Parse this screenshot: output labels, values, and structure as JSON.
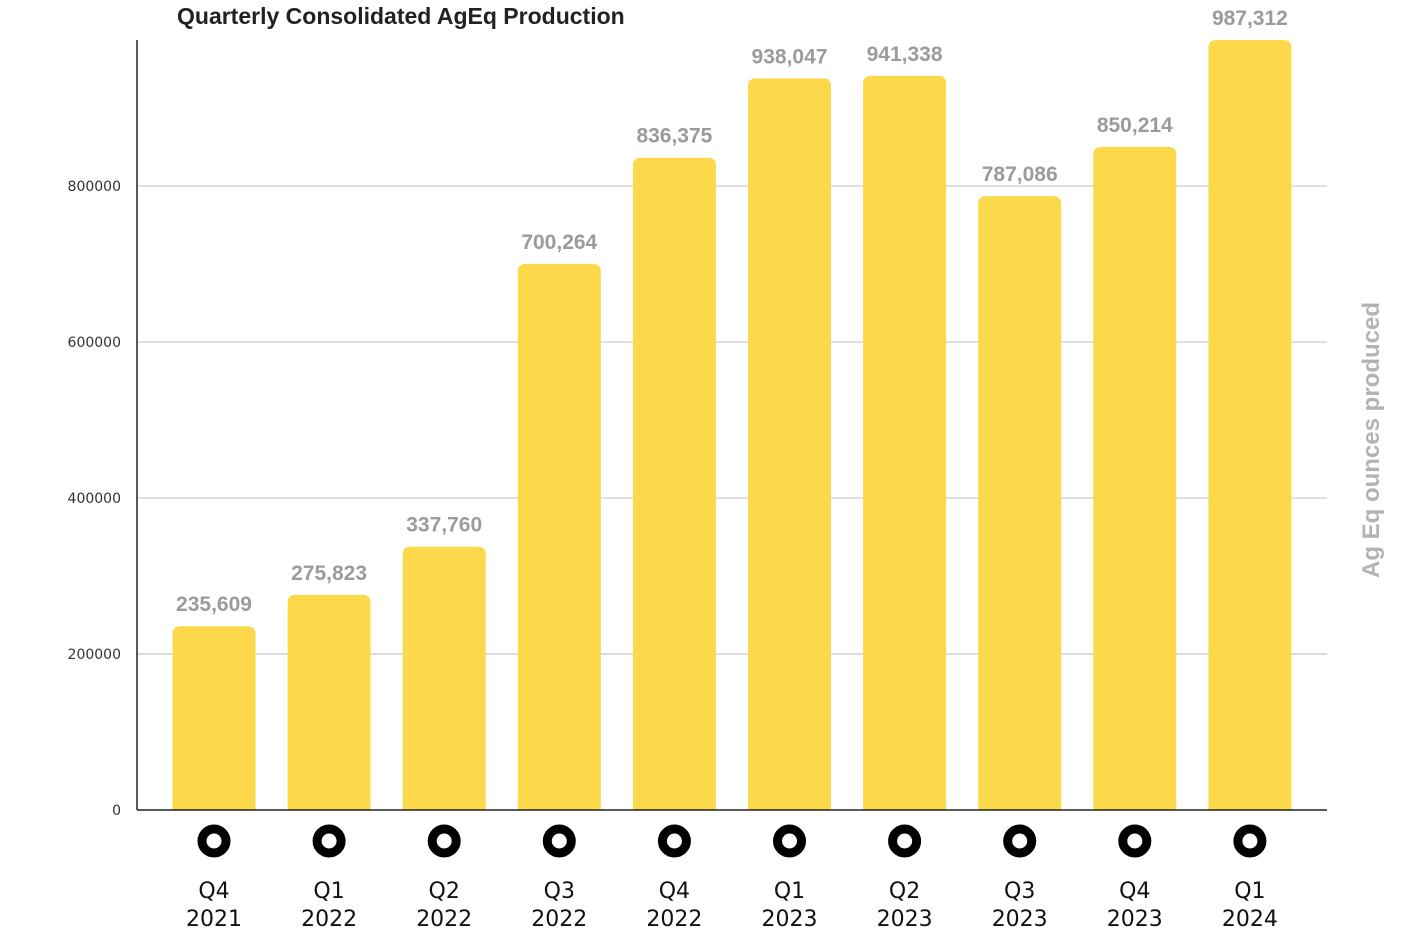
{
  "chart_data": {
    "type": "bar",
    "title": "Quarterly Consolidated AgEq Production",
    "ylabel": "Ag Eq ounces produced",
    "xlabel": "",
    "categories": [
      [
        "Q4",
        "2021"
      ],
      [
        "Q1",
        "2022"
      ],
      [
        "Q2",
        "2022"
      ],
      [
        "Q3",
        "2022"
      ],
      [
        "Q4",
        "2022"
      ],
      [
        "Q1",
        "2023"
      ],
      [
        "Q2",
        "2023"
      ],
      [
        "Q3",
        "2023"
      ],
      [
        "Q4",
        "2023"
      ],
      [
        "Q1",
        "2024"
      ]
    ],
    "values": [
      235609,
      275823,
      337760,
      700264,
      836375,
      938047,
      941338,
      787086,
      850214,
      987312
    ],
    "data_labels": [
      "235,609",
      "275,823",
      "337,760",
      "700,264",
      "836,375",
      "938,047",
      "941,338",
      "787,086",
      "850,214",
      "987,312"
    ],
    "ylim": [
      0,
      987312
    ],
    "yticks": [
      0,
      200000,
      400000,
      600000,
      800000
    ],
    "ytick_labels": [
      "0",
      "200000",
      "400000",
      "600000",
      "800000"
    ],
    "grid": "horizontal",
    "legend": "none",
    "colors": {
      "bar": "#FCD94A",
      "grid": "#c8c8c8",
      "axis": "#222222",
      "data_label": "#9b9b9b",
      "ylabel": "#b3b3b3",
      "marker": "#000000"
    },
    "x_markers": "ring-icon"
  }
}
